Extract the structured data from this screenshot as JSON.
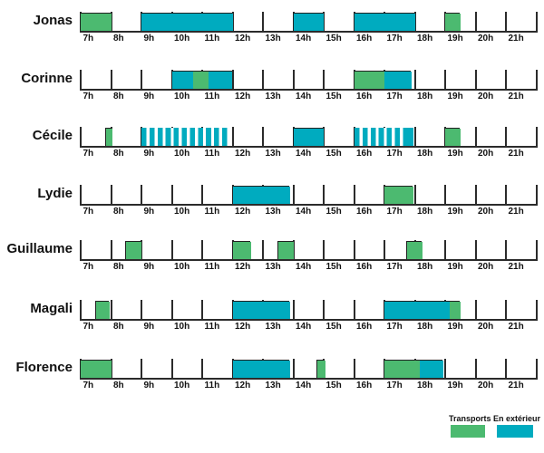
{
  "chart_data": {
    "type": "bar",
    "subtype": "gantt-timeline",
    "title": "",
    "x_unit": "hours",
    "x_range": [
      7,
      22
    ],
    "x_tick_labels": [
      "7h",
      "8h",
      "9h",
      "10h",
      "11h",
      "12h",
      "13h",
      "14h",
      "15h",
      "16h",
      "17h",
      "18h",
      "19h",
      "20h",
      "21h"
    ],
    "axis_color": "#2b2b2b",
    "categories": {
      "transports": {
        "label": "Transports",
        "color": "#4cba70"
      },
      "exterieur": {
        "label": "En extérieur",
        "color": "#00abbf"
      }
    },
    "legend": [
      {
        "key": "transports",
        "label": "Transports"
      },
      {
        "key": "exterieur",
        "label": "En extérieur"
      }
    ],
    "series": [
      {
        "name": "Jonas",
        "bars": [
          {
            "parts": [
              {
                "start": 7,
                "end": 8,
                "category": "transports",
                "pattern": "solid"
              }
            ]
          },
          {
            "parts": [
              {
                "start": 9,
                "end": 12,
                "category": "exterieur",
                "pattern": "solid"
              }
            ]
          },
          {
            "parts": [
              {
                "start": 14,
                "end": 15,
                "category": "exterieur",
                "pattern": "solid"
              }
            ]
          },
          {
            "parts": [
              {
                "start": 16,
                "end": 18,
                "category": "exterieur",
                "pattern": "solid"
              }
            ]
          },
          {
            "parts": [
              {
                "start": 19,
                "end": 19.5,
                "category": "transports",
                "pattern": "solid"
              }
            ]
          }
        ]
      },
      {
        "name": "Corinne",
        "bars": [
          {
            "parts": [
              {
                "start": 10,
                "end": 10.7,
                "category": "exterieur",
                "pattern": "solid"
              },
              {
                "start": 10.7,
                "end": 11.2,
                "category": "transports",
                "pattern": "solid"
              },
              {
                "start": 11.2,
                "end": 12,
                "category": "exterieur",
                "pattern": "solid"
              }
            ]
          },
          {
            "parts": [
              {
                "start": 16,
                "end": 17,
                "category": "transports",
                "pattern": "solid"
              },
              {
                "start": 17,
                "end": 17.9,
                "category": "exterieur",
                "pattern": "solid"
              }
            ]
          }
        ]
      },
      {
        "name": "Cécile",
        "bars": [
          {
            "parts": [
              {
                "start": 7.85,
                "end": 8.05,
                "category": "transports",
                "pattern": "solid"
              }
            ]
          },
          {
            "parts": [
              {
                "start": 9,
                "end": 11.85,
                "category": "exterieur",
                "pattern": "striped"
              }
            ]
          },
          {
            "parts": [
              {
                "start": 14,
                "end": 15,
                "category": "exterieur",
                "pattern": "solid"
              }
            ]
          },
          {
            "parts": [
              {
                "start": 16,
                "end": 17.7,
                "category": "exterieur",
                "pattern": "striped"
              },
              {
                "start": 17.7,
                "end": 17.95,
                "category": "exterieur",
                "pattern": "solid"
              }
            ]
          },
          {
            "parts": [
              {
                "start": 19,
                "end": 19.5,
                "category": "transports",
                "pattern": "solid"
              }
            ]
          }
        ]
      },
      {
        "name": "Lydie",
        "bars": [
          {
            "parts": [
              {
                "start": 12,
                "end": 13.9,
                "category": "exterieur",
                "pattern": "solid"
              }
            ]
          },
          {
            "parts": [
              {
                "start": 17,
                "end": 17.95,
                "category": "transports",
                "pattern": "solid"
              }
            ]
          }
        ]
      },
      {
        "name": "Guillaume",
        "bars": [
          {
            "parts": [
              {
                "start": 8.5,
                "end": 9,
                "category": "transports",
                "pattern": "solid"
              }
            ]
          },
          {
            "parts": [
              {
                "start": 12,
                "end": 12.6,
                "category": "transports",
                "pattern": "solid"
              }
            ]
          },
          {
            "parts": [
              {
                "start": 13.5,
                "end": 14,
                "category": "transports",
                "pattern": "solid"
              }
            ]
          },
          {
            "parts": [
              {
                "start": 17.75,
                "end": 18.25,
                "category": "transports",
                "pattern": "solid"
              }
            ]
          }
        ]
      },
      {
        "name": "Magali",
        "bars": [
          {
            "parts": [
              {
                "start": 7.5,
                "end": 7.95,
                "category": "transports",
                "pattern": "solid"
              }
            ]
          },
          {
            "parts": [
              {
                "start": 12,
                "end": 13.9,
                "category": "exterieur",
                "pattern": "solid"
              }
            ]
          },
          {
            "parts": [
              {
                "start": 17,
                "end": 19.15,
                "category": "exterieur",
                "pattern": "solid"
              },
              {
                "start": 19.15,
                "end": 19.5,
                "category": "transports",
                "pattern": "solid"
              }
            ]
          }
        ]
      },
      {
        "name": "Florence",
        "bars": [
          {
            "parts": [
              {
                "start": 7,
                "end": 8,
                "category": "transports",
                "pattern": "solid"
              }
            ]
          },
          {
            "parts": [
              {
                "start": 12,
                "end": 13.9,
                "category": "exterieur",
                "pattern": "solid"
              }
            ]
          },
          {
            "parts": [
              {
                "start": 14.8,
                "end": 15.05,
                "category": "transports",
                "pattern": "solid"
              }
            ]
          },
          {
            "parts": [
              {
                "start": 17,
                "end": 18.15,
                "category": "transports",
                "pattern": "solid"
              },
              {
                "start": 18.15,
                "end": 18.95,
                "category": "exterieur",
                "pattern": "solid"
              }
            ]
          }
        ]
      }
    ]
  }
}
